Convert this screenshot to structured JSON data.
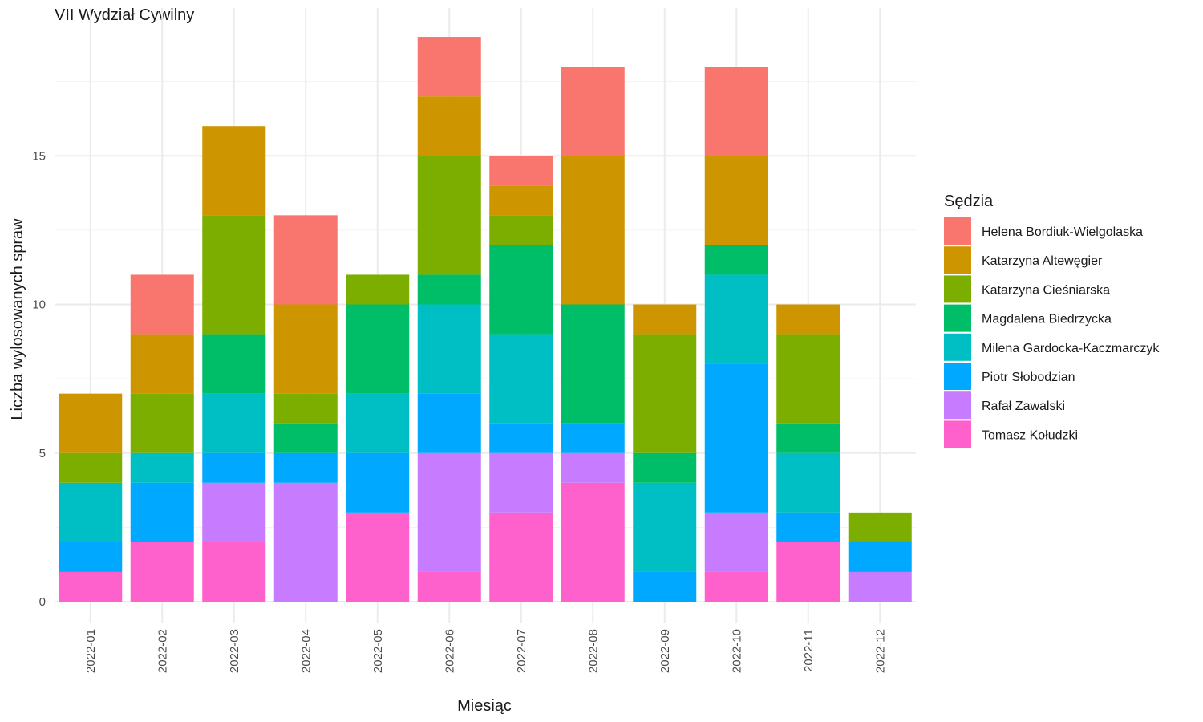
{
  "chart_data": {
    "type": "bar",
    "stacked": true,
    "title": "VII Wydział Cywilny",
    "xlabel": "Miesiąc",
    "ylabel": "Liczba wylosowanych spraw",
    "ylim": [
      0,
      19
    ],
    "yticks": [
      0,
      5,
      10,
      15
    ],
    "grid": true,
    "legend_title": "Sędzia",
    "legend_position": "right",
    "categories": [
      "2022-01",
      "2022-02",
      "2022-03",
      "2022-04",
      "2022-05",
      "2022-06",
      "2022-07",
      "2022-08",
      "2022-09",
      "2022-10",
      "2022-11",
      "2022-12"
    ],
    "series": [
      {
        "name": "Helena Bordiuk-Wielgolaska",
        "color": "#F8766D",
        "values": [
          0,
          2,
          0,
          3,
          0,
          2,
          1,
          3,
          0,
          3,
          0,
          0
        ]
      },
      {
        "name": "Katarzyna Altewęgier",
        "color": "#CD9600",
        "values": [
          2,
          2,
          3,
          3,
          0,
          2,
          1,
          5,
          1,
          3,
          1,
          0
        ]
      },
      {
        "name": "Katarzyna Cieśniarska",
        "color": "#7CAE00",
        "values": [
          1,
          2,
          4,
          1,
          1,
          4,
          1,
          0,
          4,
          0,
          3,
          1
        ]
      },
      {
        "name": "Magdalena Biedrzycka",
        "color": "#00BE67",
        "values": [
          0,
          0,
          2,
          1,
          3,
          1,
          3,
          4,
          1,
          1,
          1,
          0
        ]
      },
      {
        "name": "Milena Gardocka-Kaczmarczyk",
        "color": "#00BFC4",
        "values": [
          2,
          1,
          2,
          0,
          2,
          3,
          3,
          0,
          3,
          3,
          2,
          0
        ]
      },
      {
        "name": "Piotr Słobodzian",
        "color": "#00A9FF",
        "values": [
          1,
          2,
          1,
          1,
          2,
          2,
          1,
          1,
          1,
          5,
          1,
          1
        ]
      },
      {
        "name": "Rafał Zawalski",
        "color": "#C77CFF",
        "values": [
          0,
          0,
          2,
          4,
          0,
          4,
          2,
          1,
          0,
          2,
          0,
          1
        ]
      },
      {
        "name": "Tomasz Kołudzki",
        "color": "#FF61CC",
        "values": [
          1,
          2,
          2,
          0,
          3,
          1,
          3,
          4,
          0,
          1,
          2,
          0
        ]
      }
    ]
  }
}
